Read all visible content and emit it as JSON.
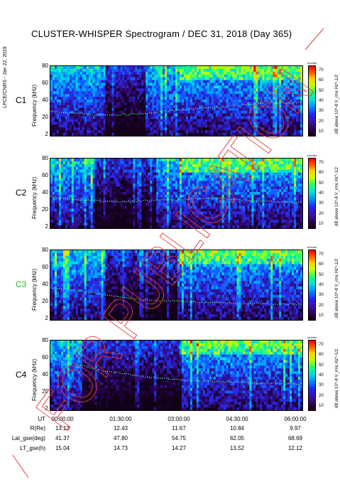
{
  "title": "CLUSTER-WHISPER Spectrogram / DEC 31, 2018 (Day 365)",
  "credit": "LPCE/CNRS - Jan 22, 2019",
  "chart_data": {
    "type": "heatmap",
    "y_axis_label": "Frequency (kHz)",
    "y_ticks": [
      "80",
      "60",
      "40",
      "20",
      "2"
    ],
    "ylim": [
      2,
      80
    ],
    "colorbar": {
      "ticks": [
        "70",
        "60",
        "50",
        "40",
        "30",
        "20",
        "10"
      ],
      "label": "dB above 10^-8 V_rms Hz^-1/2",
      "monitor_label": "monitor",
      "range": [
        10,
        70
      ]
    },
    "x_ticks": [
      "00:00:00",
      "01:30:00",
      "03:00:00",
      "04:30:00",
      "06:00:00"
    ],
    "panels": [
      {
        "name": "C1",
        "label_color": "#000000",
        "plasma_line_khz": [
          30,
          28,
          26,
          26,
          27,
          30,
          32,
          34,
          36,
          38,
          39,
          40
        ]
      },
      {
        "name": "C2",
        "label_color": "#000000",
        "plasma_line_khz": [
          38,
          34,
          33,
          32,
          33,
          34,
          35,
          36,
          35,
          33,
          32,
          31
        ]
      },
      {
        "name": "C3",
        "label_color": "#20c020",
        "plasma_line_khz": [
          38,
          36,
          32,
          28,
          25,
          24,
          23,
          22,
          21,
          21,
          20,
          20
        ]
      },
      {
        "name": "C4",
        "label_color": "#000000",
        "plasma_line_khz": [
          60,
          55,
          48,
          44,
          40,
          38,
          36,
          35,
          34,
          33,
          32,
          32
        ]
      }
    ],
    "ephemeris": {
      "label_ut": "UT",
      "rows": [
        {
          "label": "R(Re)",
          "values": [
            "13.13",
            "12.43",
            "11.67",
            "10.84",
            "9.97"
          ]
        },
        {
          "label": "Lat_gse(deg)",
          "values": [
            "41.37",
            "47.80",
            "54.75",
            "62.05",
            "68.69"
          ]
        },
        {
          "label": "LT_gse(h)",
          "values": [
            "15.04",
            "14.73",
            "14.27",
            "13.52",
            "12.12"
          ]
        }
      ]
    }
  },
  "watermark": "FOR PUBLICATION"
}
